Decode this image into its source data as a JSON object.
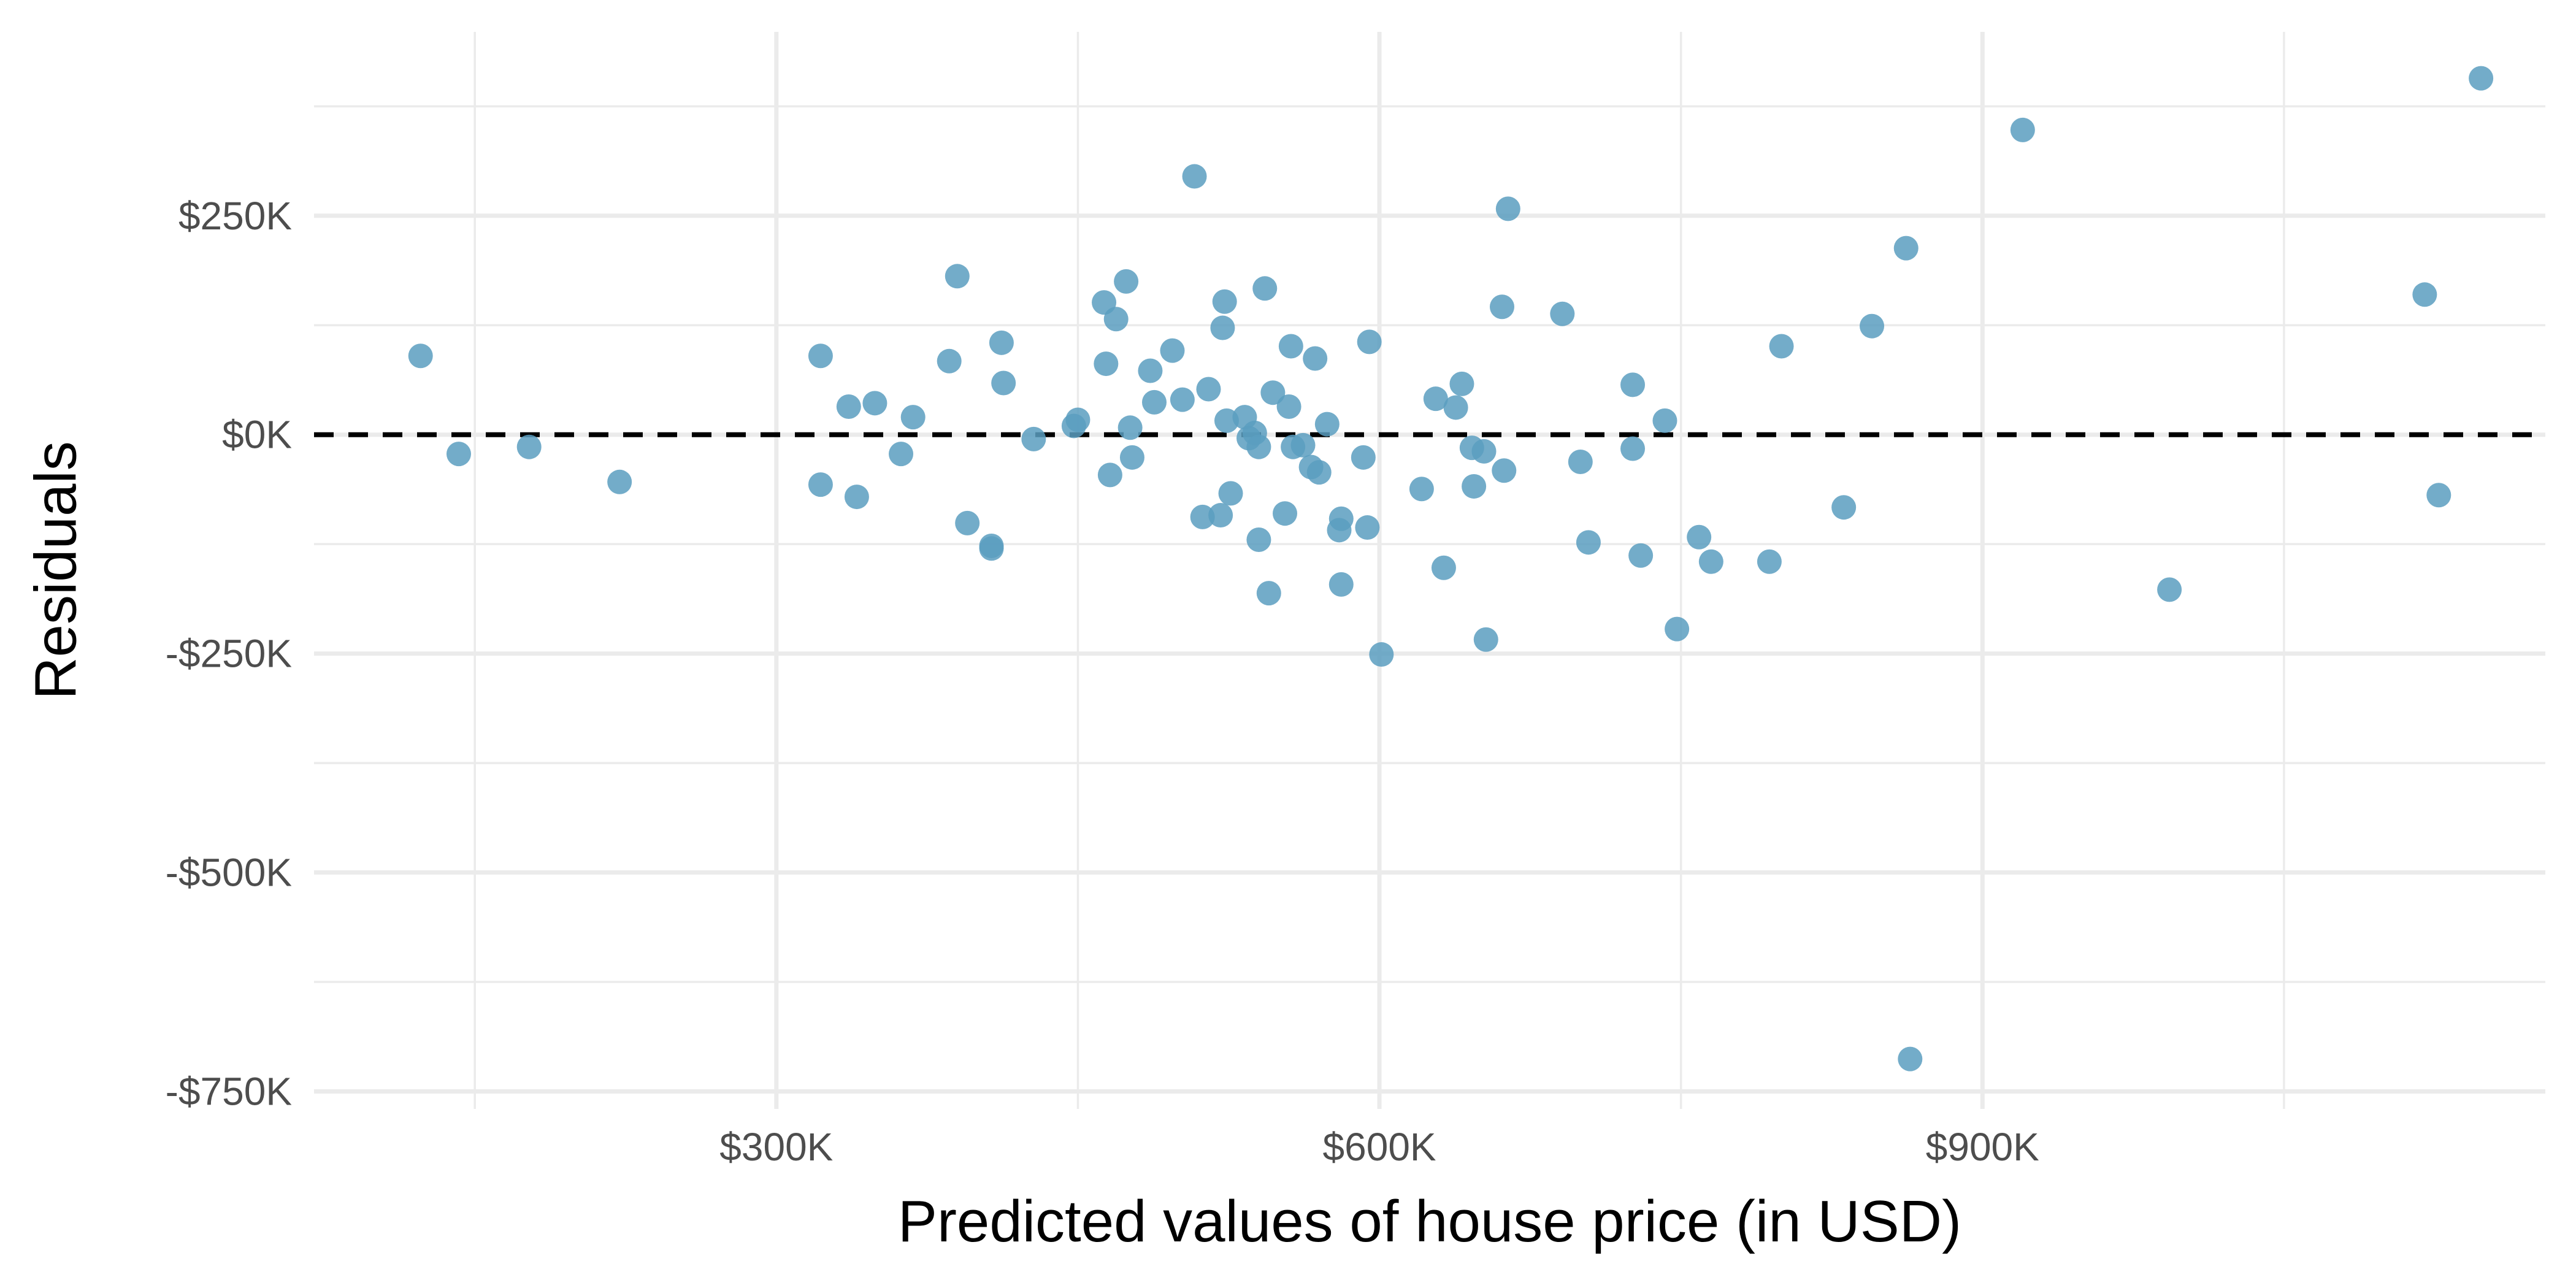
{
  "chart_data": {
    "type": "scatter",
    "title": "",
    "xlabel": "Predicted values of house price (in USD)",
    "ylabel": "Residuals",
    "xlim": [
      70000,
      1180000
    ],
    "ylim": [
      -770000,
      460000
    ],
    "x_ticks": [
      300000,
      600000,
      900000
    ],
    "x_tick_labels": [
      "$300K",
      "$600K",
      "$900K"
    ],
    "y_ticks": [
      -750000,
      -500000,
      -250000,
      0,
      250000
    ],
    "y_tick_labels": [
      "-$750K",
      "-$500K",
      "-$250K",
      "$0K",
      "$250K"
    ],
    "reference_line": {
      "y": 0,
      "style": "dashed",
      "color": "#000000"
    },
    "grid": true,
    "point_color": "#5b9ebf",
    "points": [
      {
        "x": 123000,
        "y": 90000
      },
      {
        "x": 142000,
        "y": -22000
      },
      {
        "x": 177000,
        "y": -14000
      },
      {
        "x": 222000,
        "y": -54000
      },
      {
        "x": 322000,
        "y": 90000
      },
      {
        "x": 322000,
        "y": -57000
      },
      {
        "x": 336000,
        "y": 32000
      },
      {
        "x": 340000,
        "y": -71000
      },
      {
        "x": 349000,
        "y": 36000
      },
      {
        "x": 362000,
        "y": -22000
      },
      {
        "x": 368000,
        "y": 20000
      },
      {
        "x": 386000,
        "y": 84000
      },
      {
        "x": 390000,
        "y": 181000
      },
      {
        "x": 395000,
        "y": -101000
      },
      {
        "x": 407000,
        "y": -127000
      },
      {
        "x": 407000,
        "y": -130000
      },
      {
        "x": 412000,
        "y": 105000
      },
      {
        "x": 413000,
        "y": 59000
      },
      {
        "x": 428000,
        "y": -5000
      },
      {
        "x": 448000,
        "y": 10000
      },
      {
        "x": 450000,
        "y": 17000
      },
      {
        "x": 463000,
        "y": 151000
      },
      {
        "x": 464000,
        "y": 81000
      },
      {
        "x": 466000,
        "y": -46000
      },
      {
        "x": 469000,
        "y": 132000
      },
      {
        "x": 474000,
        "y": 175000
      },
      {
        "x": 476000,
        "y": 8000
      },
      {
        "x": 477000,
        "y": -26000
      },
      {
        "x": 486000,
        "y": 73000
      },
      {
        "x": 488000,
        "y": 37000
      },
      {
        "x": 497000,
        "y": 96000
      },
      {
        "x": 502000,
        "y": 40000
      },
      {
        "x": 508000,
        "y": 295000
      },
      {
        "x": 512000,
        "y": -94000
      },
      {
        "x": 515000,
        "y": 52000
      },
      {
        "x": 521000,
        "y": -92000
      },
      {
        "x": 522000,
        "y": 122000
      },
      {
        "x": 523000,
        "y": 152000
      },
      {
        "x": 524000,
        "y": 16000
      },
      {
        "x": 526000,
        "y": -67000
      },
      {
        "x": 533000,
        "y": 20000
      },
      {
        "x": 535000,
        "y": -4000
      },
      {
        "x": 538000,
        "y": 2000
      },
      {
        "x": 540000,
        "y": -14000
      },
      {
        "x": 540000,
        "y": -120000
      },
      {
        "x": 543000,
        "y": 167000
      },
      {
        "x": 545000,
        "y": -181000
      },
      {
        "x": 547000,
        "y": 48000
      },
      {
        "x": 553000,
        "y": -90000
      },
      {
        "x": 555000,
        "y": 32000
      },
      {
        "x": 556000,
        "y": 101000
      },
      {
        "x": 557000,
        "y": -14000
      },
      {
        "x": 562000,
        "y": -12000
      },
      {
        "x": 566000,
        "y": -37000
      },
      {
        "x": 568000,
        "y": 87000
      },
      {
        "x": 570000,
        "y": -43000
      },
      {
        "x": 574000,
        "y": 12000
      },
      {
        "x": 580000,
        "y": -109000
      },
      {
        "x": 581000,
        "y": -96000
      },
      {
        "x": 581000,
        "y": -171000
      },
      {
        "x": 592000,
        "y": -26000
      },
      {
        "x": 595000,
        "y": 106000
      },
      {
        "x": 594000,
        "y": -106000
      },
      {
        "x": 601000,
        "y": -251000
      },
      {
        "x": 621000,
        "y": -62000
      },
      {
        "x": 628000,
        "y": 41000
      },
      {
        "x": 632000,
        "y": -152000
      },
      {
        "x": 638000,
        "y": 31000
      },
      {
        "x": 641000,
        "y": 58000
      },
      {
        "x": 646000,
        "y": -15000
      },
      {
        "x": 647000,
        "y": -59000
      },
      {
        "x": 652000,
        "y": -19000
      },
      {
        "x": 653000,
        "y": -234000
      },
      {
        "x": 661000,
        "y": 146000
      },
      {
        "x": 662000,
        "y": -41000
      },
      {
        "x": 664000,
        "y": 258000
      },
      {
        "x": 691000,
        "y": 138000
      },
      {
        "x": 700000,
        "y": -31000
      },
      {
        "x": 704000,
        "y": -123000
      },
      {
        "x": 726000,
        "y": 57000
      },
      {
        "x": 726000,
        "y": -16000
      },
      {
        "x": 730000,
        "y": -138000
      },
      {
        "x": 742000,
        "y": 16000
      },
      {
        "x": 748000,
        "y": -222000
      },
      {
        "x": 759000,
        "y": -117000
      },
      {
        "x": 765000,
        "y": -145000
      },
      {
        "x": 794000,
        "y": -145000
      },
      {
        "x": 800000,
        "y": 101000
      },
      {
        "x": 831000,
        "y": -83000
      },
      {
        "x": 845000,
        "y": 124000
      },
      {
        "x": 862000,
        "y": 213000
      },
      {
        "x": 864000,
        "y": -713000
      },
      {
        "x": 920000,
        "y": 348000
      },
      {
        "x": 993000,
        "y": -177000
      },
      {
        "x": 1120000,
        "y": 160000
      },
      {
        "x": 1127000,
        "y": -69000
      },
      {
        "x": 1148000,
        "y": 407000
      }
    ]
  }
}
